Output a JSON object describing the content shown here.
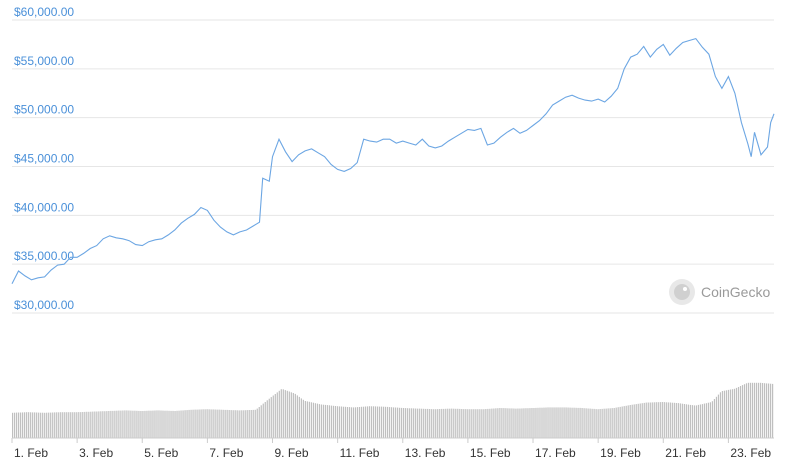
{
  "watermark": {
    "text": "CoinGecko",
    "icon": "gecko-logo-icon"
  },
  "chart_data": {
    "type": "line",
    "title": "",
    "xlabel": "",
    "ylabel": "",
    "ylim": [
      30000,
      60000
    ],
    "y_ticks": [
      {
        "value": 60000,
        "label": "$60,000.00"
      },
      {
        "value": 55000,
        "label": "$55,000.00"
      },
      {
        "value": 50000,
        "label": "$50,000.00"
      },
      {
        "value": 45000,
        "label": "$45,000.00"
      },
      {
        "value": 40000,
        "label": "$40,000.00"
      },
      {
        "value": 35000,
        "label": "$35,000.00"
      },
      {
        "value": 30000,
        "label": "$30,000.00"
      }
    ],
    "x_ticks": [
      {
        "day": 1,
        "label": "1. Feb"
      },
      {
        "day": 3,
        "label": "3. Feb"
      },
      {
        "day": 5,
        "label": "5. Feb"
      },
      {
        "day": 7,
        "label": "7. Feb"
      },
      {
        "day": 9,
        "label": "9. Feb"
      },
      {
        "day": 11,
        "label": "11. Feb"
      },
      {
        "day": 13,
        "label": "13. Feb"
      },
      {
        "day": 15,
        "label": "15. Feb"
      },
      {
        "day": 17,
        "label": "17. Feb"
      },
      {
        "day": 19,
        "label": "19. Feb"
      },
      {
        "day": 21,
        "label": "21. Feb"
      },
      {
        "day": 23,
        "label": "23. Feb"
      }
    ],
    "x_range": [
      1,
      24.4
    ],
    "grid": true,
    "colors": {
      "line": "#6ca6e3",
      "volume": "#bfbfbf",
      "ytick": "#4a90d9",
      "grid": "#e6e6e6"
    },
    "series": [
      {
        "values": [
          [
            1.0,
            33000
          ],
          [
            1.2,
            34300
          ],
          [
            1.4,
            33800
          ],
          [
            1.6,
            33400
          ],
          [
            1.8,
            33600
          ],
          [
            2.0,
            33700
          ],
          [
            2.2,
            34400
          ],
          [
            2.4,
            34900
          ],
          [
            2.6,
            35000
          ],
          [
            2.8,
            35700
          ],
          [
            3.0,
            35700
          ],
          [
            3.2,
            36100
          ],
          [
            3.4,
            36600
          ],
          [
            3.6,
            36900
          ],
          [
            3.8,
            37600
          ],
          [
            4.0,
            37900
          ],
          [
            4.2,
            37700
          ],
          [
            4.4,
            37600
          ],
          [
            4.6,
            37400
          ],
          [
            4.8,
            37000
          ],
          [
            5.0,
            36900
          ],
          [
            5.2,
            37300
          ],
          [
            5.4,
            37500
          ],
          [
            5.6,
            37600
          ],
          [
            5.8,
            38000
          ],
          [
            6.0,
            38500
          ],
          [
            6.2,
            39200
          ],
          [
            6.4,
            39700
          ],
          [
            6.6,
            40100
          ],
          [
            6.8,
            40800
          ],
          [
            7.0,
            40500
          ],
          [
            7.2,
            39500
          ],
          [
            7.4,
            38800
          ],
          [
            7.6,
            38300
          ],
          [
            7.8,
            38000
          ],
          [
            8.0,
            38300
          ],
          [
            8.2,
            38500
          ],
          [
            8.4,
            38900
          ],
          [
            8.6,
            39300
          ],
          [
            8.7,
            43800
          ],
          [
            8.9,
            43500
          ],
          [
            9.0,
            46000
          ],
          [
            9.2,
            47800
          ],
          [
            9.4,
            46500
          ],
          [
            9.6,
            45500
          ],
          [
            9.8,
            46200
          ],
          [
            10.0,
            46600
          ],
          [
            10.2,
            46800
          ],
          [
            10.4,
            46400
          ],
          [
            10.6,
            46000
          ],
          [
            10.8,
            45200
          ],
          [
            11.0,
            44700
          ],
          [
            11.2,
            44500
          ],
          [
            11.4,
            44800
          ],
          [
            11.6,
            45400
          ],
          [
            11.8,
            47800
          ],
          [
            12.0,
            47600
          ],
          [
            12.2,
            47500
          ],
          [
            12.4,
            47800
          ],
          [
            12.6,
            47800
          ],
          [
            12.8,
            47400
          ],
          [
            13.0,
            47600
          ],
          [
            13.2,
            47400
          ],
          [
            13.4,
            47200
          ],
          [
            13.6,
            47800
          ],
          [
            13.8,
            47100
          ],
          [
            14.0,
            46900
          ],
          [
            14.2,
            47100
          ],
          [
            14.4,
            47600
          ],
          [
            14.6,
            48000
          ],
          [
            14.8,
            48400
          ],
          [
            15.0,
            48800
          ],
          [
            15.2,
            48700
          ],
          [
            15.4,
            48900
          ],
          [
            15.6,
            47200
          ],
          [
            15.8,
            47400
          ],
          [
            16.0,
            48000
          ],
          [
            16.2,
            48500
          ],
          [
            16.4,
            48900
          ],
          [
            16.6,
            48400
          ],
          [
            16.8,
            48700
          ],
          [
            17.0,
            49200
          ],
          [
            17.2,
            49700
          ],
          [
            17.4,
            50400
          ],
          [
            17.6,
            51300
          ],
          [
            17.8,
            51700
          ],
          [
            18.0,
            52100
          ],
          [
            18.2,
            52300
          ],
          [
            18.4,
            52000
          ],
          [
            18.6,
            51800
          ],
          [
            18.8,
            51700
          ],
          [
            19.0,
            51900
          ],
          [
            19.2,
            51600
          ],
          [
            19.4,
            52200
          ],
          [
            19.6,
            53000
          ],
          [
            19.8,
            55000
          ],
          [
            20.0,
            56200
          ],
          [
            20.2,
            56500
          ],
          [
            20.4,
            57300
          ],
          [
            20.6,
            56200
          ],
          [
            20.8,
            57000
          ],
          [
            21.0,
            57500
          ],
          [
            21.2,
            56400
          ],
          [
            21.4,
            57100
          ],
          [
            21.6,
            57700
          ],
          [
            21.8,
            57900
          ],
          [
            22.0,
            58100
          ],
          [
            22.2,
            57200
          ],
          [
            22.4,
            56500
          ],
          [
            22.6,
            54200
          ],
          [
            22.8,
            53000
          ],
          [
            23.0,
            54200
          ],
          [
            23.2,
            52500
          ],
          [
            23.4,
            49500
          ],
          [
            23.6,
            47300
          ],
          [
            23.7,
            46000
          ],
          [
            23.8,
            48500
          ],
          [
            24.0,
            46200
          ],
          [
            24.2,
            47000
          ],
          [
            24.3,
            49500
          ],
          [
            24.4,
            50400
          ]
        ]
      }
    ],
    "volume": {
      "scale": "relative (0-1)",
      "values": [
        [
          1.0,
          0.42
        ],
        [
          1.5,
          0.43
        ],
        [
          2.0,
          0.42
        ],
        [
          2.5,
          0.43
        ],
        [
          3.0,
          0.43
        ],
        [
          3.5,
          0.44
        ],
        [
          4.0,
          0.45
        ],
        [
          4.5,
          0.46
        ],
        [
          5.0,
          0.45
        ],
        [
          5.5,
          0.46
        ],
        [
          6.0,
          0.45
        ],
        [
          6.5,
          0.47
        ],
        [
          7.0,
          0.48
        ],
        [
          7.5,
          0.47
        ],
        [
          8.0,
          0.46
        ],
        [
          8.5,
          0.47
        ],
        [
          8.9,
          0.65
        ],
        [
          9.3,
          0.82
        ],
        [
          9.7,
          0.74
        ],
        [
          10.0,
          0.62
        ],
        [
          10.5,
          0.56
        ],
        [
          11.0,
          0.53
        ],
        [
          11.5,
          0.51
        ],
        [
          12.0,
          0.53
        ],
        [
          12.5,
          0.52
        ],
        [
          13.0,
          0.5
        ],
        [
          13.5,
          0.49
        ],
        [
          14.0,
          0.48
        ],
        [
          14.5,
          0.49
        ],
        [
          15.0,
          0.48
        ],
        [
          15.5,
          0.48
        ],
        [
          16.0,
          0.5
        ],
        [
          16.5,
          0.49
        ],
        [
          17.0,
          0.5
        ],
        [
          17.5,
          0.51
        ],
        [
          18.0,
          0.51
        ],
        [
          18.5,
          0.5
        ],
        [
          19.0,
          0.48
        ],
        [
          19.5,
          0.5
        ],
        [
          20.0,
          0.55
        ],
        [
          20.5,
          0.59
        ],
        [
          21.0,
          0.6
        ],
        [
          21.5,
          0.58
        ],
        [
          22.0,
          0.54
        ],
        [
          22.5,
          0.6
        ],
        [
          22.8,
          0.78
        ],
        [
          23.2,
          0.82
        ],
        [
          23.6,
          0.92
        ],
        [
          24.0,
          0.92
        ],
        [
          24.4,
          0.9
        ]
      ]
    }
  }
}
